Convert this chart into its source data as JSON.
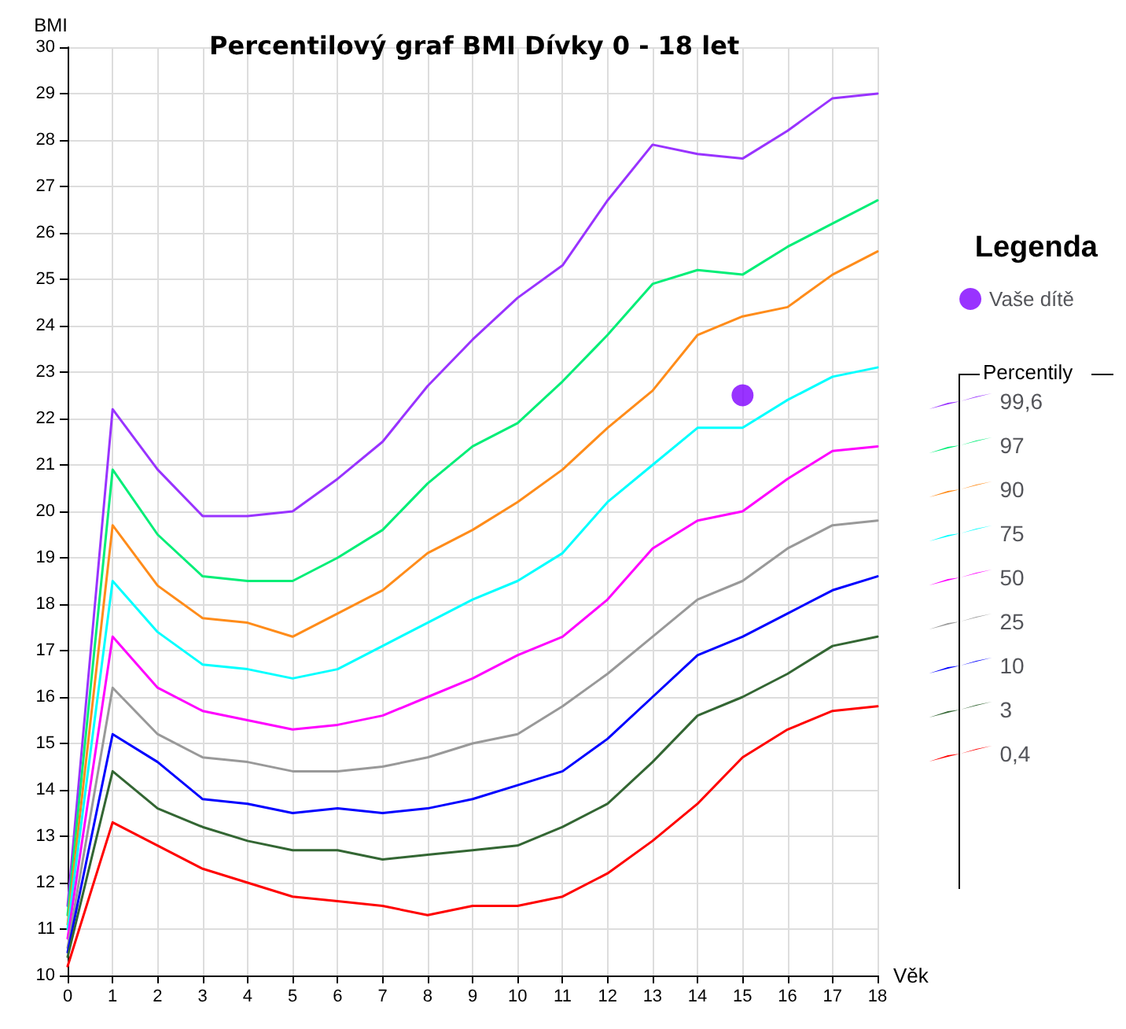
{
  "chart_data": {
    "type": "line",
    "title": "Percentilový graf BMI Dívky 0 - 18 let",
    "xlabel": "Věk",
    "ylabel": "BMI",
    "legend_title": "Legenda",
    "annotations": [
      "Percentily"
    ],
    "x": [
      0,
      1,
      2,
      3,
      4,
      5,
      6,
      7,
      8,
      9,
      10,
      11,
      12,
      13,
      14,
      15,
      16,
      17,
      18
    ],
    "xlim": [
      0,
      18
    ],
    "xticks": [
      0,
      1,
      2,
      3,
      4,
      5,
      6,
      7,
      8,
      9,
      10,
      11,
      12,
      13,
      14,
      15,
      16,
      17,
      18
    ],
    "ylim": [
      10,
      30
    ],
    "yticks": [
      10,
      11,
      12,
      13,
      14,
      15,
      16,
      17,
      18,
      19,
      20,
      21,
      22,
      23,
      24,
      25,
      26,
      27,
      28,
      29,
      30
    ],
    "grid": true,
    "legend": "right",
    "marker": "none",
    "line_style": "solid",
    "series": [
      {
        "name": "Vaše dítě",
        "type": "scatter",
        "marker": "circle",
        "color": "#7f00ff",
        "x": [
          15
        ],
        "values": [
          22.5
        ]
      },
      {
        "name": "99,6",
        "color": "#9933ff",
        "values": [
          11.5,
          22.2,
          20.9,
          19.9,
          19.9,
          20.0,
          20.7,
          21.5,
          22.7,
          23.7,
          24.6,
          25.3,
          26.7,
          27.9,
          27.7,
          27.6,
          28.2,
          28.9,
          29.0
        ]
      },
      {
        "name": "97",
        "color": "#00ee77",
        "values": [
          11.3,
          20.9,
          19.5,
          18.6,
          18.5,
          18.5,
          19.0,
          19.6,
          20.6,
          21.4,
          21.9,
          22.8,
          23.8,
          24.9,
          25.2,
          25.1,
          25.7,
          26.2,
          26.7
        ]
      },
      {
        "name": "90",
        "color": "#ff8c1a",
        "values": [
          11.1,
          19.7,
          18.4,
          17.7,
          17.6,
          17.3,
          17.8,
          18.3,
          19.1,
          19.6,
          20.2,
          20.9,
          21.8,
          22.6,
          23.8,
          24.2,
          24.4,
          25.1,
          25.6
        ]
      },
      {
        "name": "75",
        "color": "#00ffff",
        "values": [
          11.0,
          18.5,
          17.4,
          16.7,
          16.6,
          16.4,
          16.6,
          17.1,
          17.6,
          18.1,
          18.5,
          19.1,
          20.2,
          21.0,
          21.8,
          21.8,
          22.4,
          22.9,
          23.1
        ]
      },
      {
        "name": "50",
        "color": "#ff00ff",
        "values": [
          10.8,
          17.3,
          16.2,
          15.7,
          15.5,
          15.3,
          15.4,
          15.6,
          16.0,
          16.4,
          16.9,
          17.3,
          18.1,
          19.2,
          19.8,
          20.0,
          20.7,
          21.3,
          21.4
        ]
      },
      {
        "name": "25",
        "color": "#999999",
        "values": [
          10.6,
          16.2,
          15.2,
          14.7,
          14.6,
          14.4,
          14.4,
          14.5,
          14.7,
          15.0,
          15.2,
          15.8,
          16.5,
          17.3,
          18.1,
          18.5,
          19.2,
          19.7,
          19.8
        ]
      },
      {
        "name": "10",
        "color": "#0000ff",
        "values": [
          10.5,
          15.2,
          14.6,
          13.8,
          13.7,
          13.5,
          13.6,
          13.5,
          13.6,
          13.8,
          14.1,
          14.4,
          15.1,
          16.0,
          16.9,
          17.3,
          17.8,
          18.3,
          18.6
        ]
      },
      {
        "name": "3",
        "color": "#336633",
        "values": [
          10.4,
          14.4,
          13.6,
          13.2,
          12.9,
          12.7,
          12.7,
          12.5,
          12.6,
          12.7,
          12.8,
          13.2,
          13.7,
          14.6,
          15.6,
          16.0,
          16.5,
          17.1,
          17.3
        ]
      },
      {
        "name": "0,4",
        "color": "#ff0000",
        "values": [
          10.2,
          13.3,
          12.8,
          12.3,
          12.0,
          11.7,
          11.6,
          11.5,
          11.3,
          11.5,
          11.5,
          11.7,
          12.2,
          12.9,
          13.7,
          14.7,
          15.3,
          15.7,
          15.8
        ]
      }
    ]
  }
}
